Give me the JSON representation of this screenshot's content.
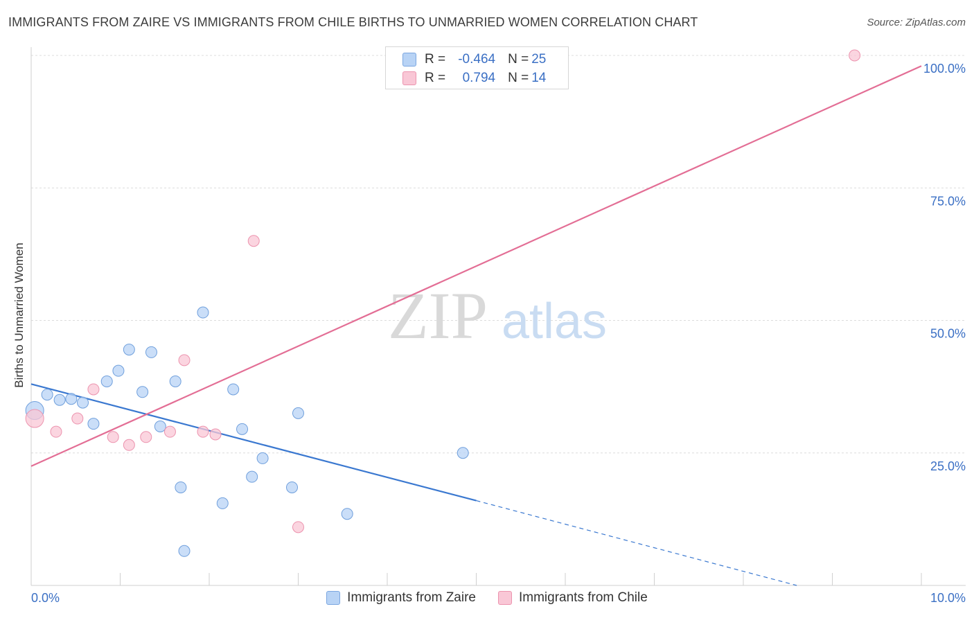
{
  "title": "IMMIGRANTS FROM ZAIRE VS IMMIGRANTS FROM CHILE BIRTHS TO UNMARRIED WOMEN CORRELATION CHART",
  "source": "Source: ZipAtlas.com",
  "watermark": {
    "zip": "ZIP",
    "atlas": "atlas"
  },
  "stats": [
    {
      "r_label": "R =",
      "r_value": "-0.464",
      "n_label": "N =",
      "n_value": "25",
      "color": "#b8d3f5",
      "border": "#7aa6e0"
    },
    {
      "r_label": "R =",
      "r_value": "0.794",
      "n_label": "N =",
      "n_value": "14",
      "color": "#f9c7d6",
      "border": "#ec93ae"
    }
  ],
  "legend": [
    {
      "label": "Immigrants from Zaire",
      "color": "#b8d3f5",
      "border": "#7aa6e0"
    },
    {
      "label": "Immigrants from Chile",
      "color": "#f9c7d6",
      "border": "#ec93ae"
    }
  ],
  "chart_data": {
    "type": "scatter",
    "title": "IMMIGRANTS FROM ZAIRE VS IMMIGRANTS FROM CHILE BIRTHS TO UNMARRIED WOMEN CORRELATION CHART",
    "xlabel": "",
    "ylabel": "Births to Unmarried Women",
    "xlim": [
      0,
      10
    ],
    "ylim": [
      0,
      100
    ],
    "x_tick_labels": [
      {
        "value": 0,
        "label": "0.0%"
      },
      {
        "value": 10,
        "label": "10.0%"
      }
    ],
    "y_tick_labels": [
      {
        "value": 25,
        "label": "25.0%"
      },
      {
        "value": 50,
        "label": "50.0%"
      },
      {
        "value": 75,
        "label": "75.0%"
      },
      {
        "value": 100,
        "label": "100.0%"
      }
    ],
    "grid": true,
    "series": [
      {
        "name": "Immigrants from Zaire",
        "color": "#b8d3f5",
        "edge": "#6f9fdc",
        "line_color": "#3a78d0",
        "points": [
          {
            "x": 0.04,
            "y": 33.0,
            "big": true
          },
          {
            "x": 0.18,
            "y": 36.0
          },
          {
            "x": 0.32,
            "y": 35.0
          },
          {
            "x": 0.45,
            "y": 35.2
          },
          {
            "x": 0.58,
            "y": 34.5
          },
          {
            "x": 0.7,
            "y": 30.5
          },
          {
            "x": 0.85,
            "y": 38.5
          },
          {
            "x": 0.98,
            "y": 40.5
          },
          {
            "x": 1.1,
            "y": 44.5
          },
          {
            "x": 1.25,
            "y": 36.5
          },
          {
            "x": 1.35,
            "y": 44.0
          },
          {
            "x": 1.45,
            "y": 30.0
          },
          {
            "x": 1.62,
            "y": 38.5
          },
          {
            "x": 1.68,
            "y": 18.5
          },
          {
            "x": 1.72,
            "y": 6.5
          },
          {
            "x": 1.93,
            "y": 51.5
          },
          {
            "x": 2.15,
            "y": 15.5
          },
          {
            "x": 2.27,
            "y": 37.0
          },
          {
            "x": 2.37,
            "y": 29.5
          },
          {
            "x": 2.48,
            "y": 20.5
          },
          {
            "x": 2.6,
            "y": 24.0
          },
          {
            "x": 2.93,
            "y": 18.5
          },
          {
            "x": 3.0,
            "y": 32.5
          },
          {
            "x": 3.55,
            "y": 13.5
          },
          {
            "x": 4.85,
            "y": 25.0
          }
        ],
        "trend": {
          "x0": 0,
          "y0": 38.0,
          "x1": 5.0,
          "y1": 16.0,
          "dash_to_x": 8.6,
          "dash_to_y": 0.0
        }
      },
      {
        "name": "Immigrants from Chile",
        "color": "#f9c7d6",
        "edge": "#ec93ae",
        "line_color": "#e36e95",
        "points": [
          {
            "x": 0.04,
            "y": 31.5,
            "big": true
          },
          {
            "x": 0.28,
            "y": 29.0
          },
          {
            "x": 0.52,
            "y": 31.5
          },
          {
            "x": 0.7,
            "y": 37.0
          },
          {
            "x": 0.92,
            "y": 28.0
          },
          {
            "x": 1.1,
            "y": 26.5
          },
          {
            "x": 1.29,
            "y": 28.0
          },
          {
            "x": 1.56,
            "y": 29.0
          },
          {
            "x": 1.72,
            "y": 42.5
          },
          {
            "x": 1.93,
            "y": 29.0
          },
          {
            "x": 2.07,
            "y": 28.5
          },
          {
            "x": 2.5,
            "y": 65.0
          },
          {
            "x": 3.0,
            "y": 11.0
          },
          {
            "x": 9.25,
            "y": 100.0
          }
        ],
        "trend": {
          "x0": 0,
          "y0": 22.5,
          "x1": 10.0,
          "y1": 98.0
        }
      }
    ]
  }
}
